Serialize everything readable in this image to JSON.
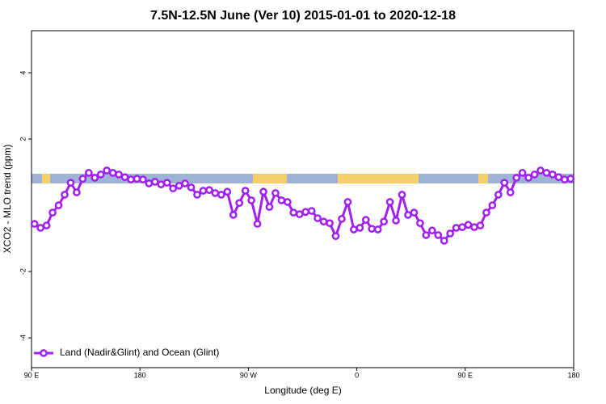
{
  "chart_data": {
    "type": "line",
    "title": "7.5N-12.5N June (Ver 10)   2015-01-01 to 2020-12-18",
    "x_label": "Longitude (deg E)",
    "y_label": "XCO2 - MLO trend (ppm)",
    "xlim": [
      90,
      540
    ],
    "xticks": [
      {
        "value": 90,
        "label": "90 E"
      },
      {
        "value": 180,
        "label": "180"
      },
      {
        "value": 270,
        "label": "90 W"
      },
      {
        "value": 360,
        "label": "0"
      },
      {
        "value": 450,
        "label": "90 E"
      },
      {
        "value": 540,
        "label": "180"
      }
    ],
    "ylim": [
      -4.9,
      5.27
    ],
    "yticks": [
      -4,
      -2,
      2,
      4
    ],
    "legend_position": "bottom-left",
    "x": [
      92.5,
      97.5,
      102.5,
      107.5,
      112.5,
      117.5,
      122.5,
      127.5,
      132.5,
      137.5,
      142.5,
      147.5,
      152.5,
      157.5,
      162.5,
      167.5,
      172.5,
      177.5,
      182.5,
      187.5,
      192.5,
      197.5,
      202.5,
      207.5,
      212.5,
      217.5,
      222.5,
      227.5,
      232.5,
      237.5,
      242.5,
      247.5,
      252.5,
      257.5,
      262.5,
      267.5,
      272.5,
      277.5,
      282.5,
      287.5,
      292.5,
      297.5,
      302.5,
      307.5,
      312.5,
      317.5,
      322.5,
      327.5,
      332.5,
      337.5,
      342.5,
      347.5,
      352.5,
      357.5,
      362.5,
      367.5,
      372.5,
      377.5,
      382.5,
      387.5,
      392.5,
      397.5,
      402.5,
      407.5,
      412.5,
      417.5,
      422.5,
      427.5,
      432.5,
      437.5,
      442.5,
      447.5,
      452.5,
      457.5,
      462.5,
      467.5,
      472.5,
      477.5,
      482.5,
      487.5,
      492.5,
      497.5,
      502.5,
      507.5,
      512.5,
      517.5,
      522.5,
      527.5,
      532.5,
      537.5
    ],
    "series": [
      {
        "name": "Land (Nadir&Glint) and Ocean (Glint)",
        "color": "#a020f0",
        "values": [
          -0.56,
          -0.68,
          -0.61,
          -0.22,
          0,
          0.32,
          0.68,
          0.39,
          0.8,
          0.98,
          0.83,
          0.93,
          1.05,
          0.98,
          0.93,
          0.85,
          0.78,
          0.8,
          0.78,
          0.66,
          0.71,
          0.63,
          0.68,
          0.51,
          0.59,
          0.66,
          0.54,
          0.32,
          0.44,
          0.46,
          0.37,
          0.32,
          0.41,
          -0.29,
          0.07,
          0.44,
          0.15,
          -0.56,
          0.41,
          -0.05,
          0.37,
          0.15,
          0.1,
          -0.22,
          -0.27,
          -0.2,
          -0.17,
          -0.39,
          -0.49,
          -0.54,
          -0.93,
          -0.41,
          0.1,
          -0.73,
          -0.68,
          -0.44,
          -0.71,
          -0.73,
          -0.49,
          0.1,
          -0.46,
          0.32,
          -0.29,
          -0.22,
          -0.54,
          -0.9,
          -0.76,
          -0.9,
          -1.07,
          -0.85,
          -0.68,
          -0.66,
          -0.59,
          -0.66,
          -0.61,
          -0.22,
          0,
          0.32,
          0.68,
          0.39,
          0.83,
          0.98,
          0.83,
          0.93,
          1.05,
          0.98,
          0.93,
          0.85,
          0.78,
          0.8
        ]
      }
    ]
  }
}
